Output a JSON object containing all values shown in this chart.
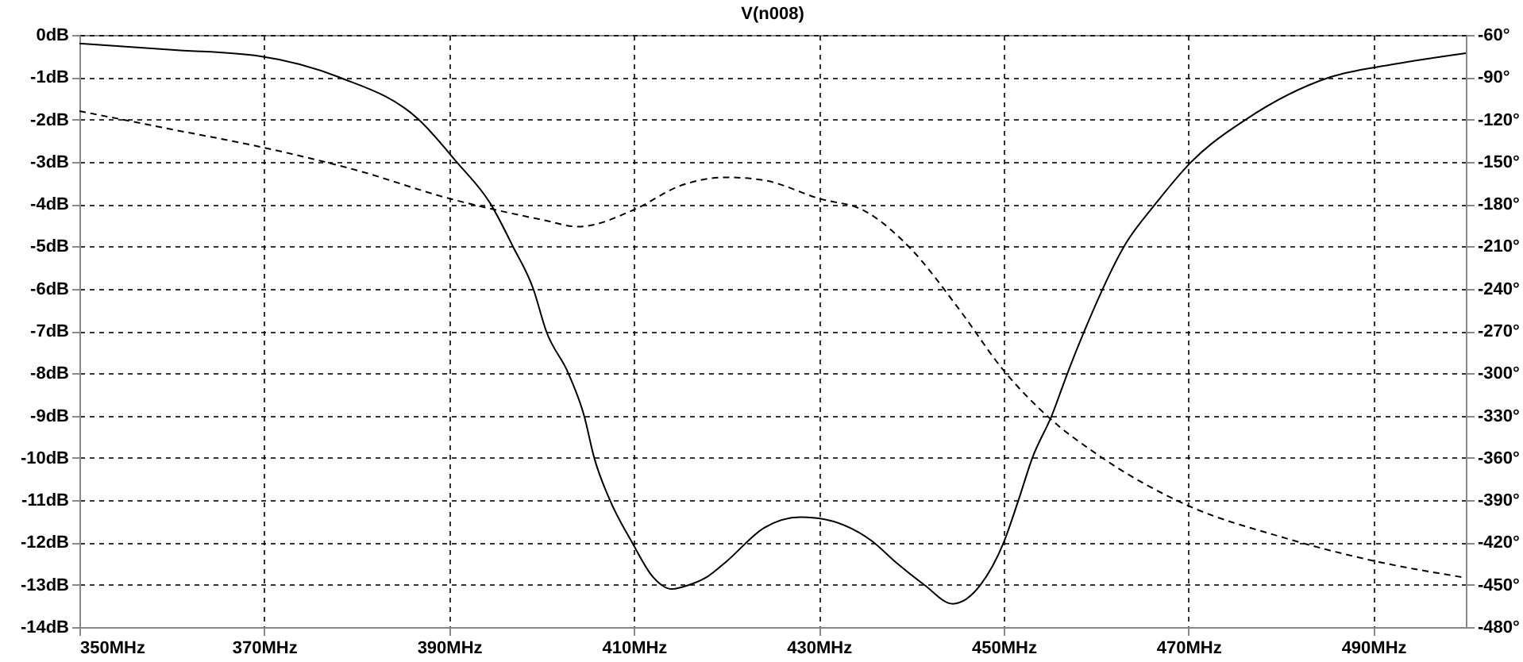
{
  "chart_data": {
    "type": "line",
    "title": "V(n008)",
    "x": [
      350,
      360,
      369.5,
      378.1,
      386.7,
      390.8,
      394.5,
      396.9,
      399.1,
      400.5,
      402.9,
      404.6,
      405.7,
      407.4,
      409.8,
      412,
      414.1,
      416,
      418,
      420,
      424.1,
      428,
      430,
      435.7,
      438.5,
      441.4,
      444.5,
      447.5,
      450,
      451.6,
      453.1,
      455.2,
      456.9,
      458.6,
      463.3,
      466.4,
      470.3,
      476.2,
      485.3,
      492,
      500
    ],
    "series": [
      {
        "color": "#000000",
        "line_style": "solid",
        "values": [
          -0.2,
          -0.35,
          -0.5,
          -1,
          -2,
          -3,
          -4,
          -5,
          -6,
          -7,
          -8,
          -9,
          -10,
          -11,
          -12,
          -12.8,
          -13.1,
          -13,
          -12.8,
          -12.45,
          -11.65,
          -11.4,
          -11.43,
          -11.96,
          -12.5,
          -13,
          -13.45,
          -13,
          -12,
          -11,
          -10,
          -9,
          -8,
          -7.07,
          -4.9,
          -4,
          -3,
          -2,
          -1,
          -0.7,
          -0.43
        ]
      },
      {
        "color": "#000000",
        "line_style": "dashed",
        "axis": "y2",
        "x": [
          350,
          360,
          370,
          380,
          390,
          400,
          404,
          410,
          415,
          420,
          424,
          430,
          435,
          440,
          445,
          450,
          455,
          460,
          470,
          480,
          490,
          500
        ],
        "values": [
          -114,
          -127,
          -140,
          -156,
          -176,
          -191,
          -196,
          -184,
          -167,
          -161,
          -163,
          -176,
          -185,
          -212,
          -253,
          -298,
          -332,
          -357,
          -394,
          -416,
          -433,
          -445
        ]
      }
    ],
    "xlim": [
      350,
      500
    ],
    "xticks": [
      {
        "value": 350,
        "label": "350MHz"
      },
      {
        "value": 370,
        "label": "370MHz"
      },
      {
        "value": 390,
        "label": "390MHz"
      },
      {
        "value": 410,
        "label": "410MHz"
      },
      {
        "value": 430,
        "label": "430MHz"
      },
      {
        "value": 450,
        "label": "450MHz"
      },
      {
        "value": 470,
        "label": "470MHz"
      },
      {
        "value": 490,
        "label": "490MHz"
      }
    ],
    "ylim": [
      -14,
      0
    ],
    "yticks": [
      {
        "value": 0,
        "label": "0dB"
      },
      {
        "value": -1,
        "label": "-1dB"
      },
      {
        "value": -2,
        "label": "-2dB"
      },
      {
        "value": -3,
        "label": "-3dB"
      },
      {
        "value": -4,
        "label": "-4dB"
      },
      {
        "value": -5,
        "label": "-5dB"
      },
      {
        "value": -6,
        "label": "-6dB"
      },
      {
        "value": -7,
        "label": "-7dB"
      },
      {
        "value": -8,
        "label": "-8dB"
      },
      {
        "value": -9,
        "label": "-9dB"
      },
      {
        "value": -10,
        "label": "-10dB"
      },
      {
        "value": -11,
        "label": "-11dB"
      },
      {
        "value": -12,
        "label": "-12dB"
      },
      {
        "value": -13,
        "label": "-13dB"
      },
      {
        "value": -14,
        "label": "-14dB"
      }
    ],
    "y2lim": [
      -480,
      -60
    ],
    "y2ticks": [
      {
        "value": -60,
        "label": "-60°"
      },
      {
        "value": -90,
        "label": "-90°"
      },
      {
        "value": -120,
        "label": "-120°"
      },
      {
        "value": -150,
        "label": "-150°"
      },
      {
        "value": -180,
        "label": "-180°"
      },
      {
        "value": -210,
        "label": "-210°"
      },
      {
        "value": -240,
        "label": "-240°"
      },
      {
        "value": -270,
        "label": "-270°"
      },
      {
        "value": -300,
        "label": "-300°"
      },
      {
        "value": -330,
        "label": "-330°"
      },
      {
        "value": -360,
        "label": "-360°"
      },
      {
        "value": -390,
        "label": "-390°"
      },
      {
        "value": -420,
        "label": "-420°"
      },
      {
        "value": -450,
        "label": "-450°"
      },
      {
        "value": -480,
        "label": "-480°"
      }
    ],
    "grid": true
  }
}
